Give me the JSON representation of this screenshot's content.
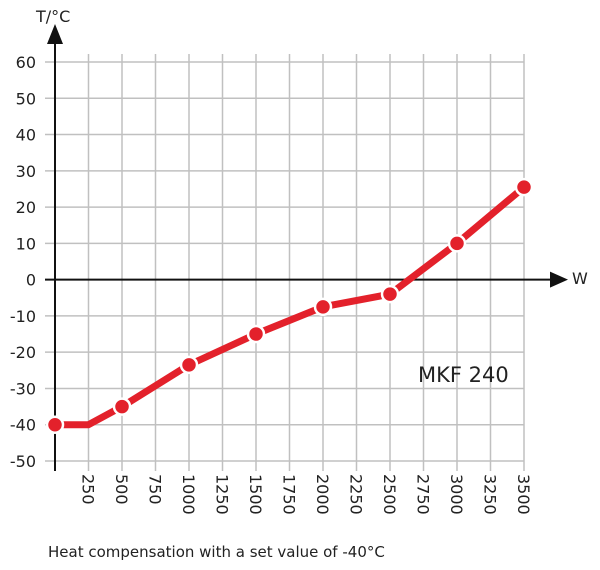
{
  "chart_data": {
    "type": "line",
    "ylabel": "T/°C",
    "xlabel": "W",
    "caption": "Heat compensation with a set value of -40°C",
    "annotation": "MKF 240",
    "xlim": [
      0,
      3500
    ],
    "ylim": [
      -50,
      60
    ],
    "x_ticks": [
      250,
      500,
      750,
      1000,
      1250,
      1500,
      1750,
      2000,
      2250,
      2500,
      2750,
      3000,
      3250,
      3500
    ],
    "y_ticks": [
      60,
      50,
      40,
      30,
      20,
      10,
      0,
      -10,
      -20,
      -30,
      -40,
      -50
    ],
    "grid": true,
    "line_color": "#e3212b",
    "grid_color": "#c0c0c0",
    "line": [
      [
        0,
        -40
      ],
      [
        250,
        -40
      ],
      [
        500,
        -35
      ],
      [
        1000,
        -23.5
      ],
      [
        1500,
        -15
      ],
      [
        2000,
        -7.5
      ],
      [
        2500,
        -4
      ],
      [
        3000,
        10
      ],
      [
        3500,
        25.5
      ]
    ],
    "markers": [
      [
        0,
        -40
      ],
      [
        500,
        -35
      ],
      [
        1000,
        -23.5
      ],
      [
        1500,
        -15
      ],
      [
        2000,
        -7.5
      ],
      [
        2500,
        -4
      ],
      [
        3000,
        10
      ],
      [
        3500,
        25.5
      ]
    ]
  }
}
